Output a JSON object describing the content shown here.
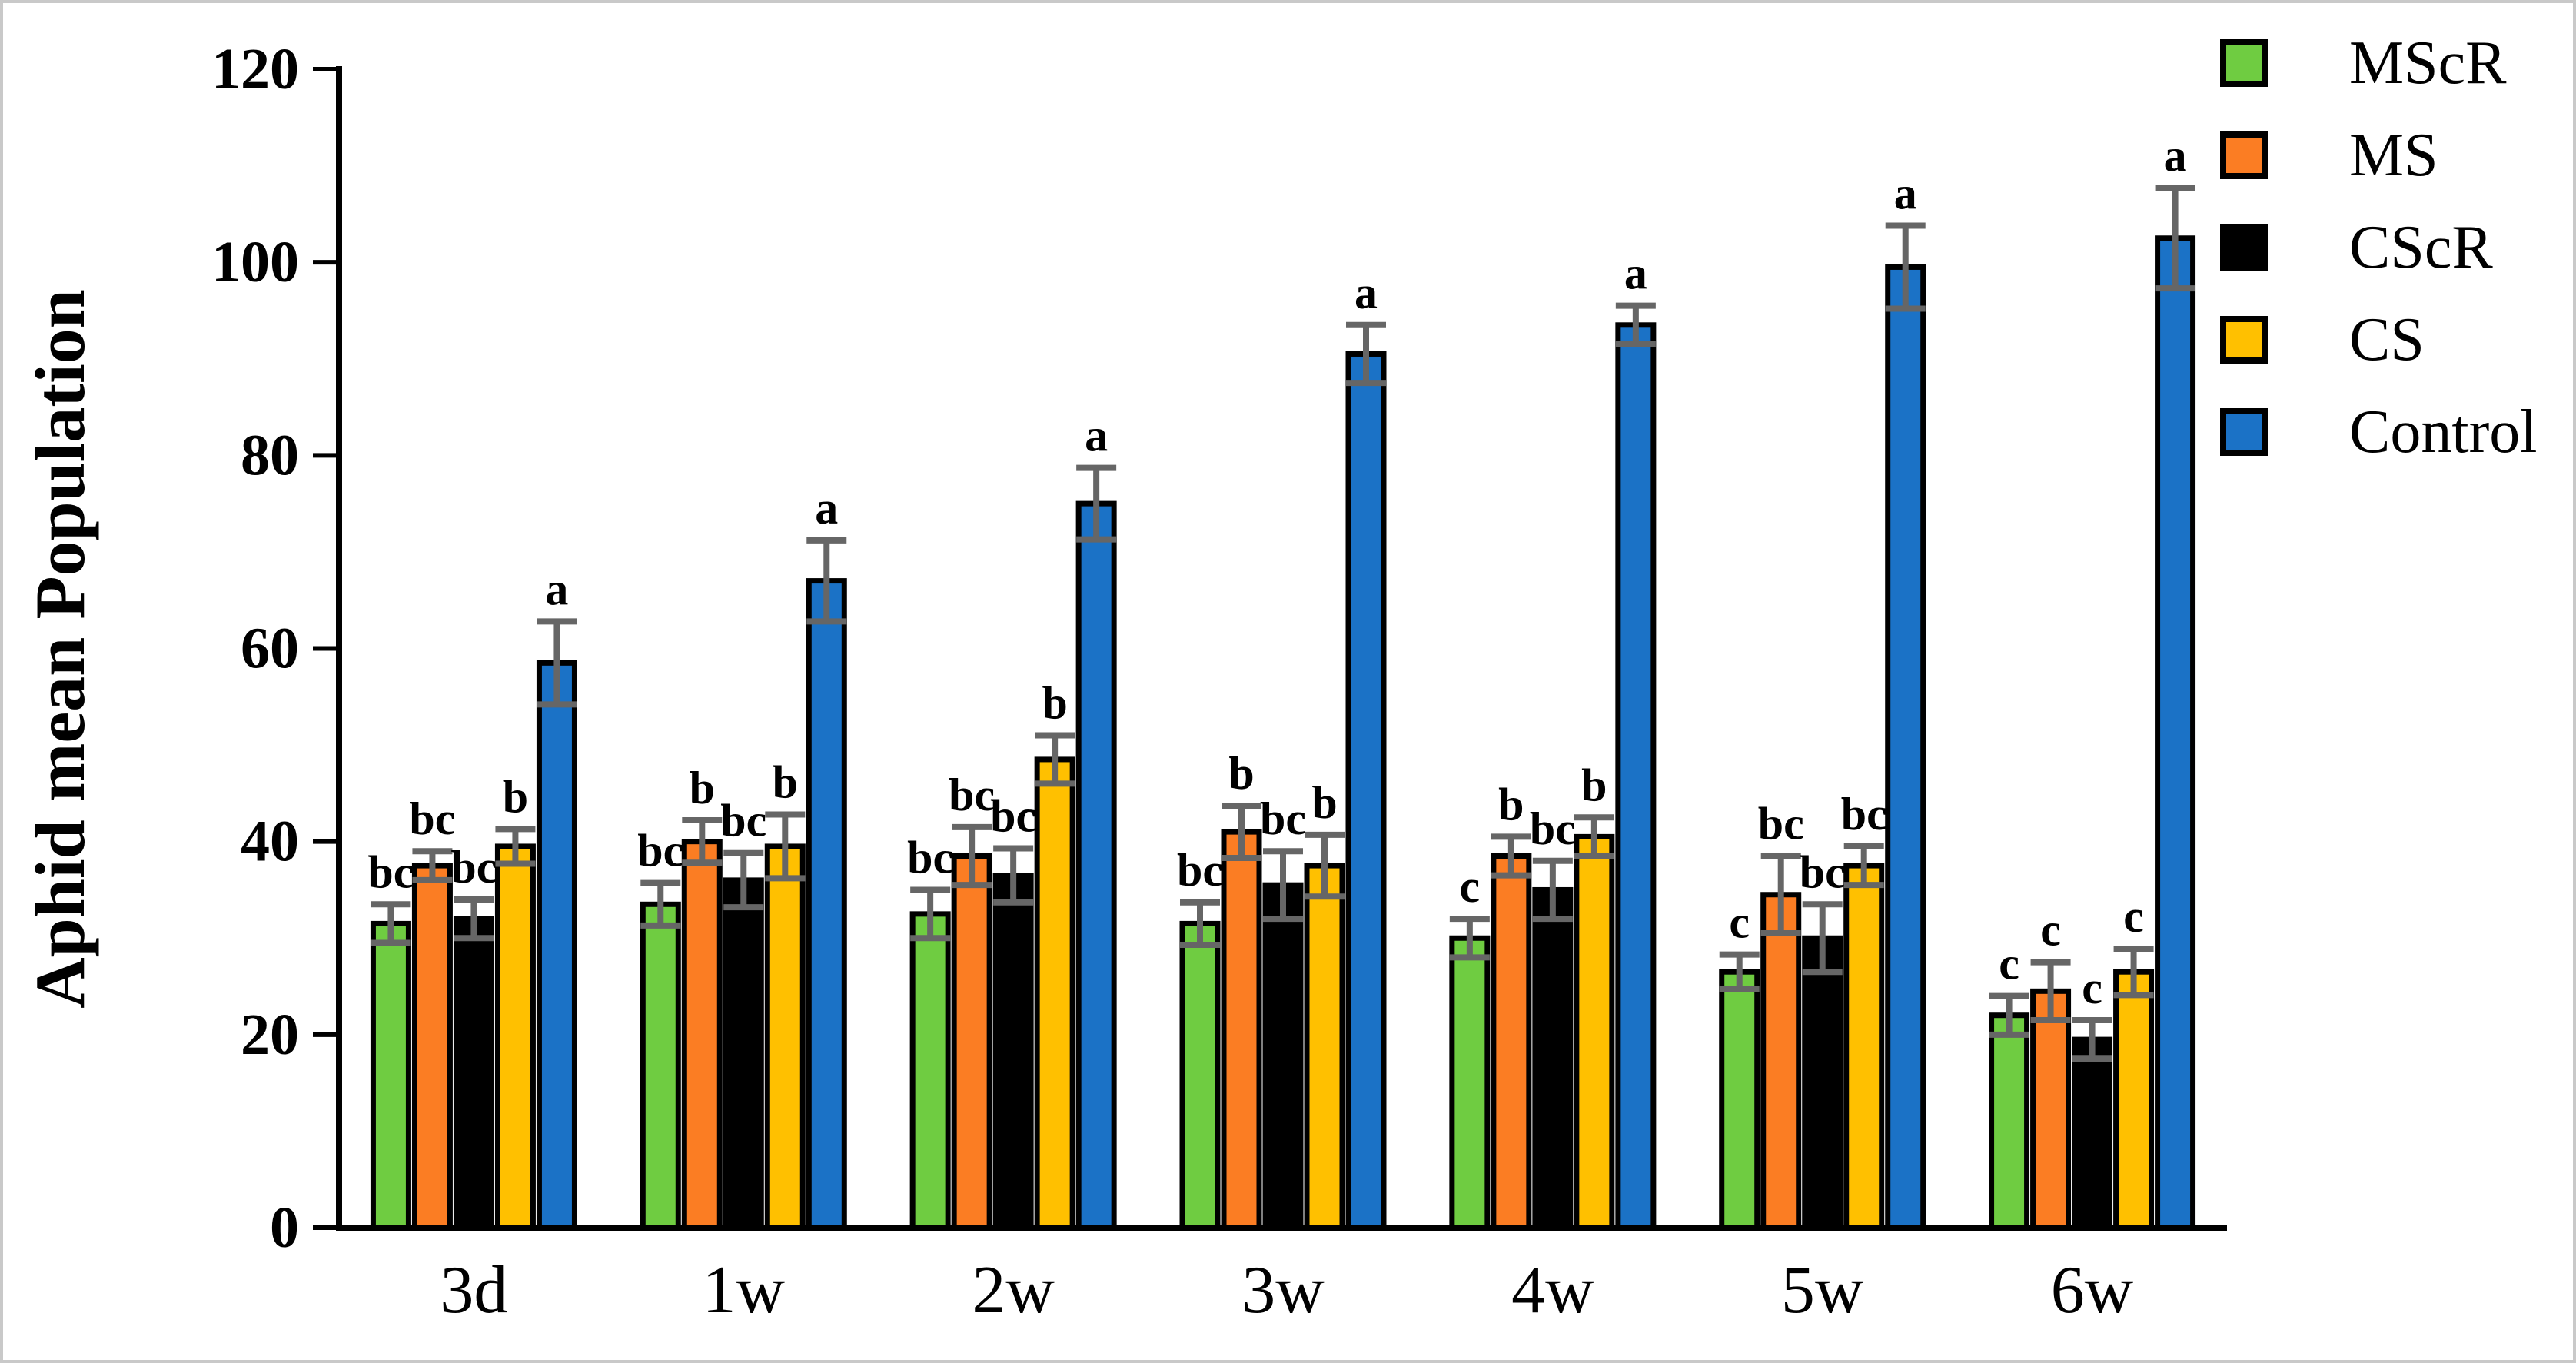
{
  "figure": {
    "frame_color": "#c9c9c9",
    "background_color": "#ffffff"
  },
  "chart_data": {
    "type": "bar",
    "title": "",
    "xlabel": "",
    "ylabel": "Aphid mean Population",
    "ylim": [
      0,
      120
    ],
    "yticks": [
      0,
      20,
      40,
      60,
      80,
      100,
      120
    ],
    "grid": false,
    "legend_position": "top-right",
    "categories": [
      "3d",
      "1w",
      "2w",
      "3w",
      "4w",
      "5w",
      "6w"
    ],
    "series": [
      {
        "name": "MScR",
        "color": "#6FCC41",
        "values": [
          31.5,
          33.5,
          32.5,
          31.5,
          30,
          26.5,
          22
        ],
        "errors": [
          2,
          2.2,
          2.5,
          2.2,
          2,
          1.8,
          2
        ],
        "letters": [
          "bc",
          "bc",
          "bc",
          "bc",
          "c",
          "c",
          "c"
        ]
      },
      {
        "name": "MS",
        "color": "#FB7D23",
        "values": [
          37.5,
          40,
          38.5,
          41,
          38.5,
          34.5,
          24.5
        ],
        "errors": [
          1.5,
          2.2,
          3,
          2.7,
          2,
          4,
          3
        ],
        "letters": [
          "bc",
          "b",
          "bc",
          "b",
          "b",
          "bc",
          "c"
        ]
      },
      {
        "name": "CScR",
        "color": "#000000",
        "values": [
          32,
          36,
          36.5,
          35.5,
          35,
          30,
          19.5
        ],
        "errors": [
          2,
          2.8,
          2.8,
          3.5,
          3,
          3.5,
          2
        ],
        "letters": [
          "bc",
          "bc",
          "bc",
          "bc",
          "bc",
          "bc",
          "c"
        ]
      },
      {
        "name": "CS",
        "color": "#FFC000",
        "values": [
          39.5,
          39.5,
          48.5,
          37.5,
          40.5,
          37.5,
          26.5
        ],
        "errors": [
          1.8,
          3.3,
          2.5,
          3.2,
          2,
          2,
          2.4
        ],
        "letters": [
          "b",
          "b",
          "b",
          "b",
          "b",
          "bc",
          "c"
        ]
      },
      {
        "name": "Control",
        "color": "#1B72C6",
        "values": [
          58.5,
          67,
          75,
          90.5,
          93.5,
          99.5,
          102.5
        ],
        "errors": [
          4.3,
          4.2,
          3.7,
          3,
          2,
          4.3,
          5.2
        ],
        "letters": [
          "a",
          "a",
          "a",
          "a",
          "a",
          "a",
          "a"
        ]
      }
    ],
    "bar_outline_color": "#000000",
    "error_bar_color": "#666666",
    "axis_color": "#000000",
    "text_color": "#000000"
  }
}
